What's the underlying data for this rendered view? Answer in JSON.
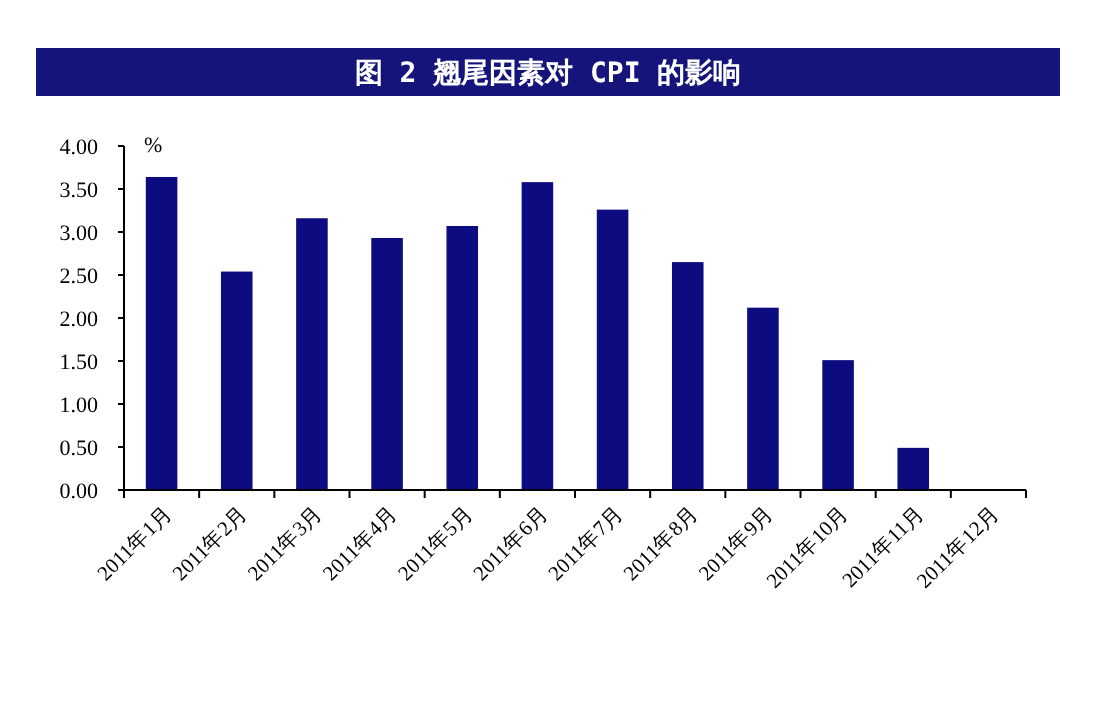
{
  "chart_data": {
    "type": "bar",
    "title": "图 2  翘尾因素对 CPI 的影响",
    "ylabel": "%",
    "categories": [
      "2011年1月",
      "2011年2月",
      "2011年3月",
      "2011年4月",
      "2011年5月",
      "2011年6月",
      "2011年7月",
      "2011年8月",
      "2011年9月",
      "2011年10月",
      "2011年11月",
      "2011年12月"
    ],
    "values": [
      3.64,
      2.54,
      3.16,
      2.93,
      3.07,
      3.58,
      3.26,
      2.65,
      2.12,
      1.51,
      0.49,
      0
    ],
    "color": "#0c0c80",
    "ylim": [
      0,
      4
    ],
    "yticks": [
      {
        "value": 0,
        "label": "0.00"
      },
      {
        "value": 0.5,
        "label": "0.50"
      },
      {
        "value": 1,
        "label": "1.00"
      },
      {
        "value": 1.5,
        "label": "1.50"
      },
      {
        "value": 2,
        "label": "2.00"
      },
      {
        "value": 2.5,
        "label": "2.50"
      },
      {
        "value": 3,
        "label": "3.00"
      },
      {
        "value": 3.5,
        "label": "3.50"
      },
      {
        "value": 4,
        "label": "4.00"
      }
    ],
    "grid": false
  }
}
